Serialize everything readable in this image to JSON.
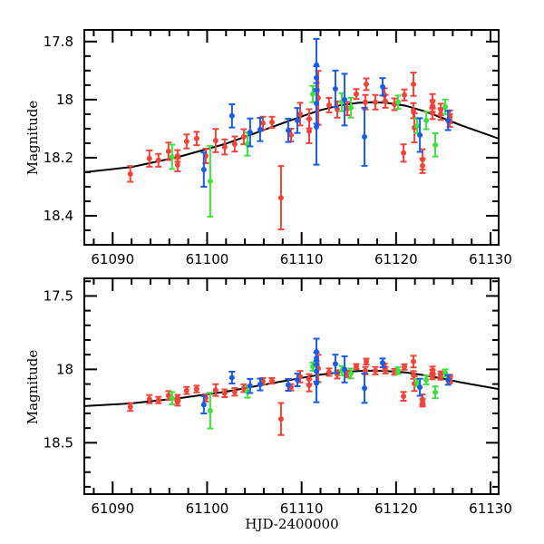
{
  "chart_data": [
    {
      "type": "scatter",
      "panel": "top",
      "title": "",
      "xlabel": "",
      "ylabel": "Magnitude",
      "xlim": [
        61087,
        61130.86
      ],
      "ylim": [
        18.5,
        17.76
      ],
      "y_inverted": true,
      "xticks": [
        61090,
        61100,
        61110,
        61120,
        61130
      ],
      "xtick_labels": [
        "61090",
        "61100",
        "61110",
        "61120",
        "61130"
      ],
      "x_minor_step": 2,
      "yticks": [
        17.8,
        18,
        18.2,
        18.4
      ],
      "ytick_labels": [
        "17.8",
        "18",
        "18.2",
        "18.4"
      ],
      "y_minor_step": 0.05,
      "grid": false,
      "legend": "none"
    },
    {
      "type": "scatter",
      "panel": "bottom",
      "title": "",
      "xlabel": "HJD-2400000",
      "ylabel": "Magnitude",
      "xlim": [
        61087,
        61130.86
      ],
      "ylim": [
        18.85,
        17.38
      ],
      "y_inverted": true,
      "xticks": [
        61090,
        61100,
        61110,
        61120,
        61130
      ],
      "xtick_labels": [
        "61090",
        "61100",
        "61110",
        "61120",
        "61130"
      ],
      "x_minor_step": 2,
      "yticks": [
        17.5,
        18,
        18.5
      ],
      "ytick_labels": [
        "17.5",
        "18",
        "18.5"
      ],
      "y_minor_step": 0.1,
      "grid": false,
      "legend": "none"
    }
  ],
  "colors": {
    "red": "#f0443a",
    "green": "#3fe03f",
    "blue": "#1a5ce8",
    "model": "#000000"
  },
  "model_curve": [
    [
      61087,
      18.25
    ],
    [
      61092,
      18.232
    ],
    [
      61097,
      18.197
    ],
    [
      61102,
      18.152
    ],
    [
      61107,
      18.093
    ],
    [
      61110,
      18.058
    ],
    [
      61112,
      18.036
    ],
    [
      61114,
      18.02
    ],
    [
      61116,
      18.011
    ],
    [
      61117.5,
      18.009
    ],
    [
      61119,
      18.011
    ],
    [
      61121,
      18.021
    ],
    [
      61123,
      18.04
    ],
    [
      61125,
      18.064
    ],
    [
      61127,
      18.09
    ],
    [
      61130.86,
      18.134
    ]
  ],
  "series": [
    {
      "name": "red",
      "points": [
        [
          61091.87,
          18.256,
          0.027
        ],
        [
          61093.89,
          18.203,
          0.028
        ],
        [
          61094.85,
          18.209,
          0.022
        ],
        [
          61095.91,
          18.178,
          0.03
        ],
        [
          61096.87,
          18.194,
          0.02
        ],
        [
          61096.87,
          18.225,
          0.022
        ],
        [
          61097.83,
          18.144,
          0.024
        ],
        [
          61098.89,
          18.134,
          0.023
        ],
        [
          61099.85,
          18.194,
          0.025
        ],
        [
          61100.9,
          18.141,
          0.04
        ],
        [
          61101.86,
          18.163,
          0.026
        ],
        [
          61102.92,
          18.153,
          0.026
        ],
        [
          61103.88,
          18.128,
          0.026
        ],
        [
          61105.9,
          18.081,
          0.022
        ],
        [
          61106.86,
          18.078,
          0.019
        ],
        [
          61107.82,
          18.338,
          0.109
        ],
        [
          61108.88,
          18.122,
          0.022
        ],
        [
          61109.84,
          18.05,
          0.039
        ],
        [
          61110.8,
          18.109,
          0.041
        ],
        [
          61110.8,
          18.066,
          0.033
        ],
        [
          61111.76,
          17.994,
          0.093
        ],
        [
          61112.91,
          18.019,
          0.025
        ],
        [
          61113.78,
          18.034,
          0.028
        ],
        [
          61114.84,
          18.031,
          0.023
        ],
        [
          61115.79,
          17.981,
          0.017
        ],
        [
          61116.75,
          18.009,
          0.025
        ],
        [
          61116.85,
          17.947,
          0.02
        ],
        [
          61117.81,
          18.009,
          0.025
        ],
        [
          61118.77,
          17.984,
          0.023
        ],
        [
          61118.87,
          18.006,
          0.022
        ],
        [
          61119.83,
          18.016,
          0.02
        ],
        [
          61120.88,
          17.984,
          0.019
        ],
        [
          61120.79,
          18.184,
          0.03
        ],
        [
          61121.84,
          17.947,
          0.04
        ],
        [
          61121.84,
          18.038,
          0.026
        ],
        [
          61121.94,
          18.097,
          0.05
        ],
        [
          61122.8,
          18.206,
          0.035
        ],
        [
          61122.8,
          18.228,
          0.025
        ],
        [
          61123.86,
          18.006,
          0.025
        ],
        [
          61123.86,
          18.022,
          0.02
        ],
        [
          61123.86,
          18.047,
          0.02
        ],
        [
          61124.73,
          18.034,
          0.02
        ],
        [
          61124.73,
          18.05,
          0.02
        ],
        [
          61125.69,
          18.059,
          0.022
        ],
        [
          61125.69,
          18.072,
          0.022
        ]
      ]
    },
    {
      "name": "green",
      "points": [
        [
          61096.29,
          18.197,
          0.042
        ],
        [
          61100.33,
          18.281,
          0.122
        ],
        [
          61104.27,
          18.153,
          0.04
        ],
        [
          61111.18,
          17.981,
          0.028
        ],
        [
          61114.26,
          18.009,
          0.031
        ],
        [
          61115.22,
          18.028,
          0.034
        ],
        [
          61120.21,
          18.009,
          0.023
        ],
        [
          61122.23,
          18.091,
          0.025
        ],
        [
          61123.19,
          18.072,
          0.03
        ],
        [
          61124.15,
          18.156,
          0.04
        ],
        [
          61125.21,
          18.025,
          0.025
        ]
      ]
    },
    {
      "name": "blue",
      "points": [
        [
          61099.65,
          18.241,
          0.059
        ],
        [
          61102.63,
          18.056,
          0.04
        ],
        [
          61104.55,
          18.113,
          0.048
        ],
        [
          61105.61,
          18.103,
          0.04
        ],
        [
          61108.59,
          18.106,
          0.04
        ],
        [
          61109.55,
          18.072,
          0.043
        ],
        [
          61111.57,
          17.881,
          0.09
        ],
        [
          61111.57,
          17.925,
          0.04
        ],
        [
          61111.57,
          18.013,
          0.07
        ],
        [
          61111.57,
          18.094,
          0.13
        ],
        [
          61113.58,
          17.963,
          0.063
        ],
        [
          61114.55,
          18.0,
          0.089
        ],
        [
          61116.66,
          18.128,
          0.1
        ],
        [
          61118.58,
          17.956,
          0.03
        ],
        [
          61122.52,
          18.122,
          0.058
        ],
        [
          61125.5,
          18.072,
          0.033
        ]
      ]
    }
  ]
}
